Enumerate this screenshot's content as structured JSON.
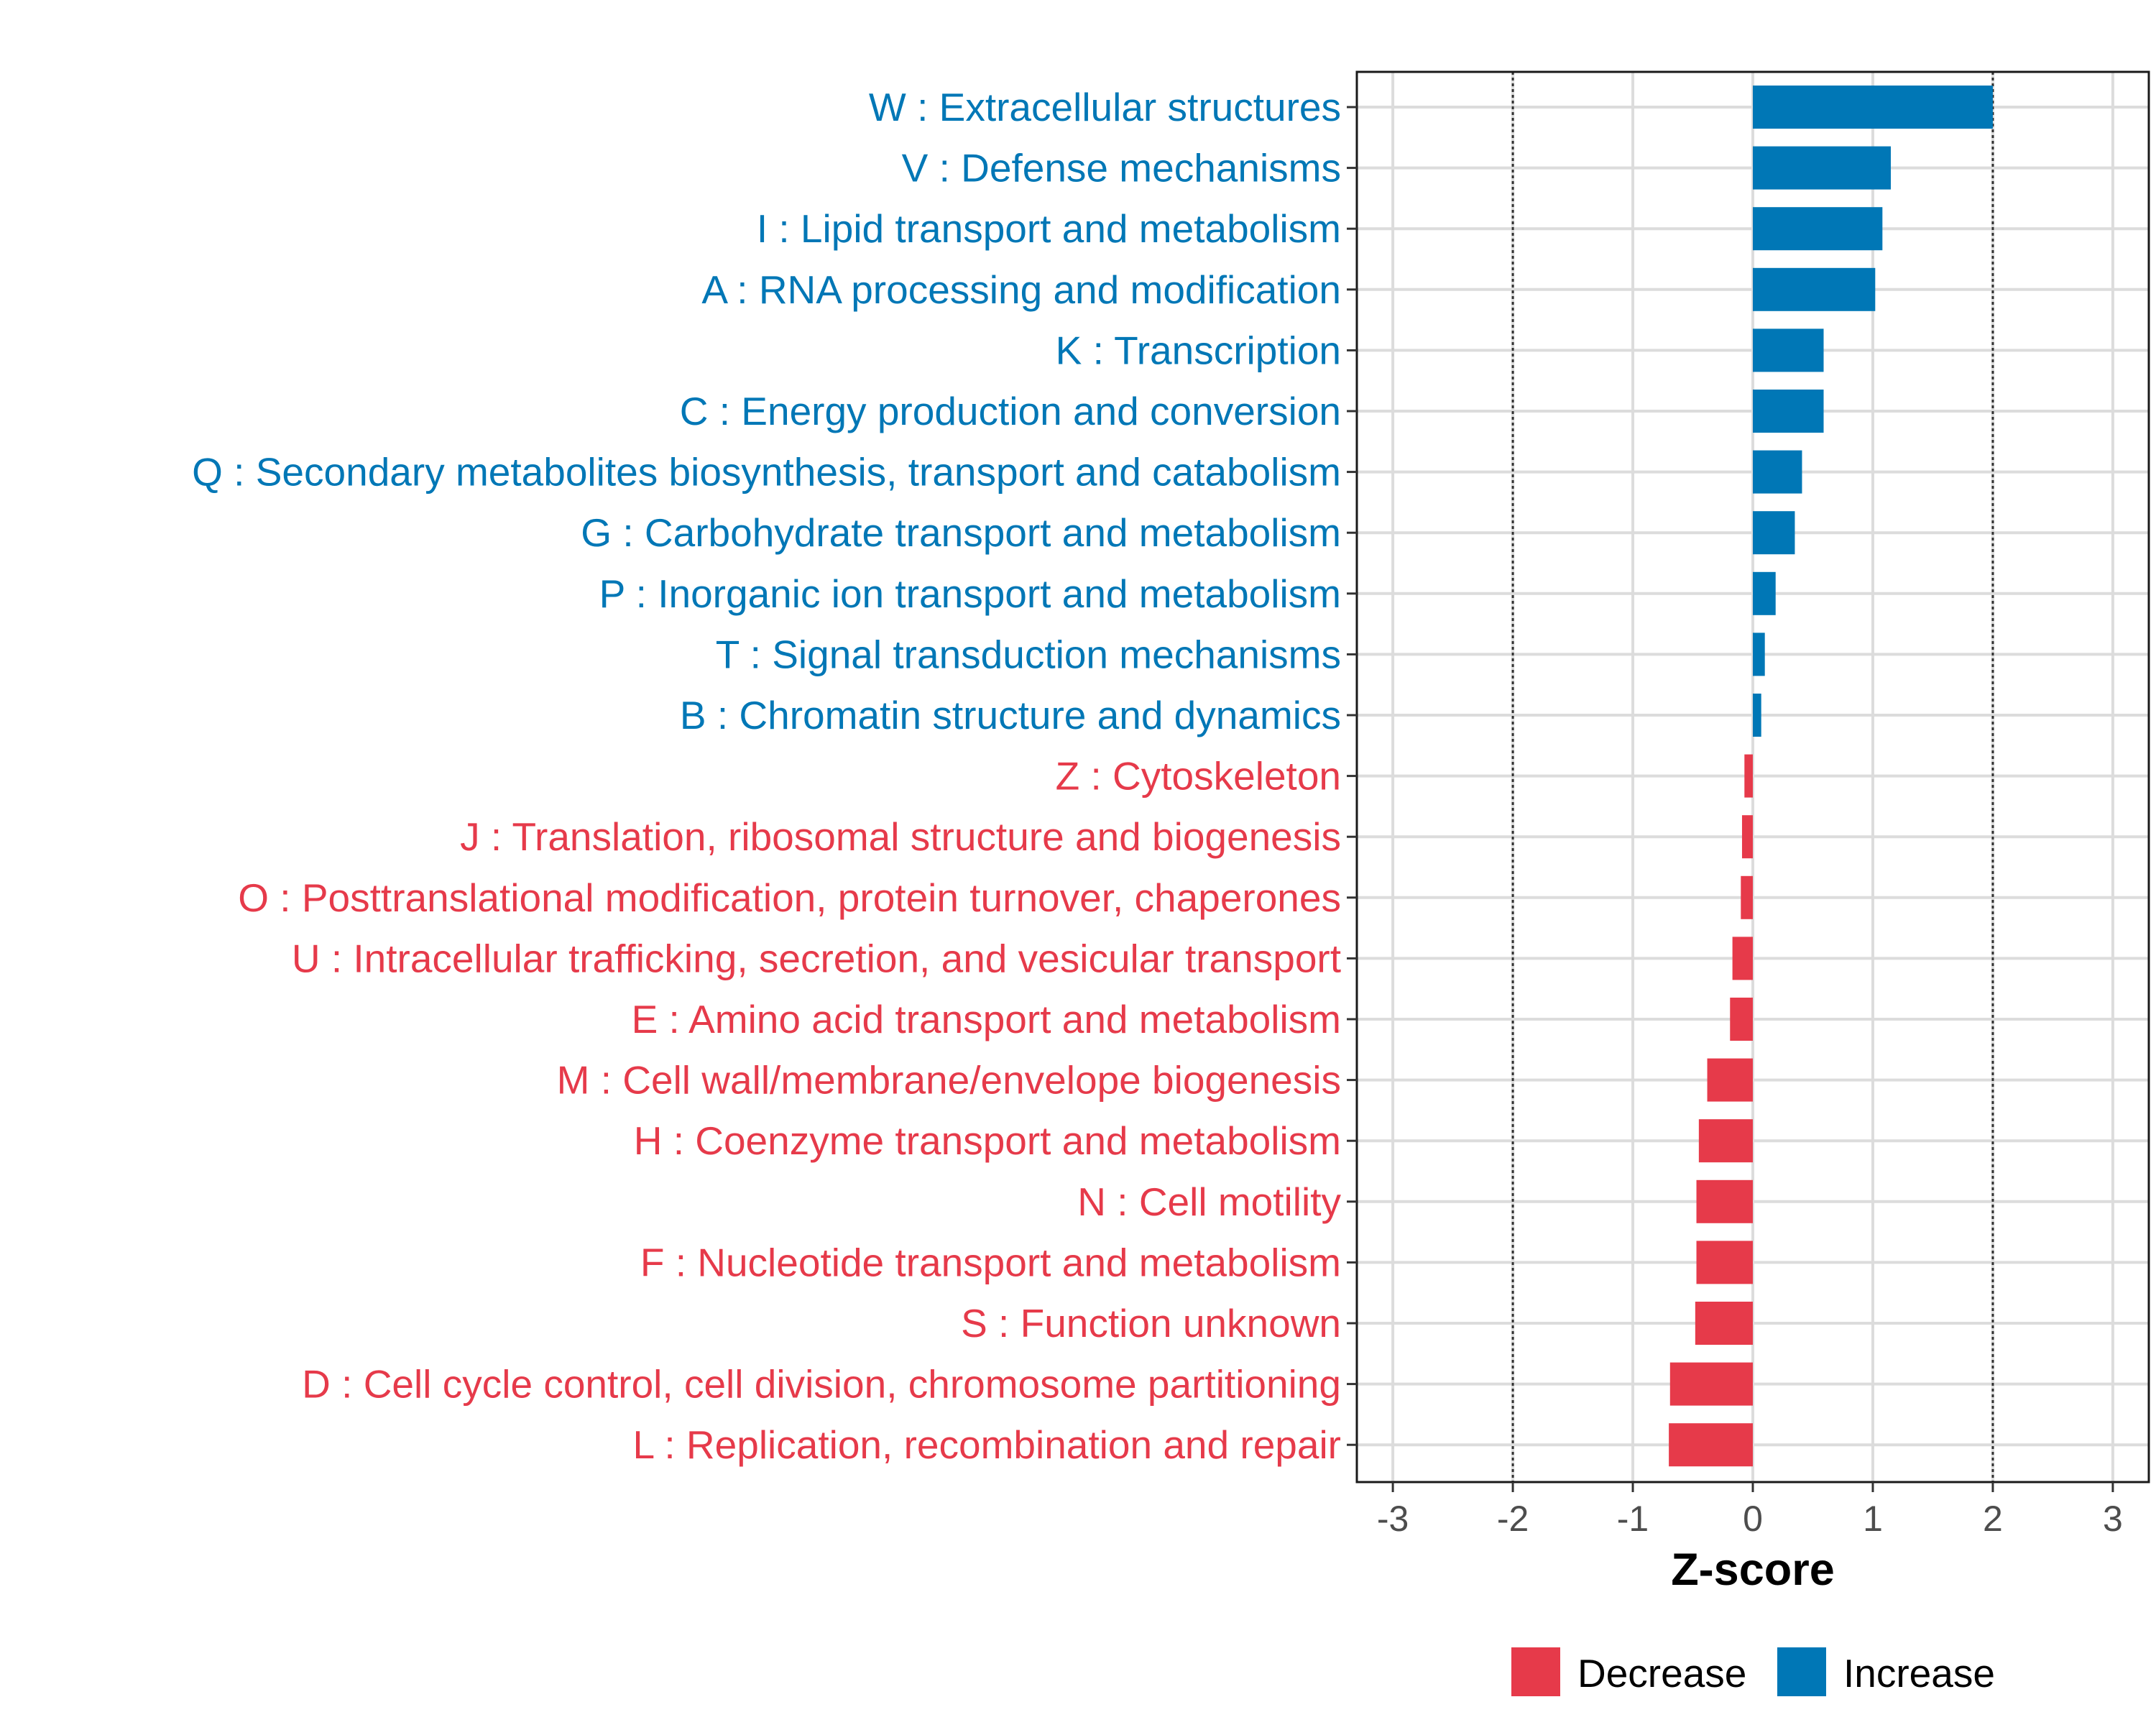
{
  "chart_data": {
    "type": "bar",
    "orientation": "horizontal",
    "title": "",
    "xlabel": "Z-score",
    "ylabel": "",
    "xlim": [
      -3.3,
      3.3
    ],
    "xticks": [
      -3,
      -2,
      -1,
      0,
      1,
      2,
      3
    ],
    "reference_lines": [
      -2,
      2
    ],
    "grid": true,
    "legend_position": "bottom",
    "colors": {
      "Decrease": "#E63A4A",
      "Increase": "#0077B6"
    },
    "legend": [
      {
        "name": "Decrease",
        "color": "#E63A4A"
      },
      {
        "name": "Increase",
        "color": "#0077B6"
      }
    ],
    "categories": [
      "W : Extracellular structures",
      "V : Defense mechanisms",
      "I : Lipid transport and metabolism",
      "A : RNA processing and modification",
      "K : Transcription",
      "C : Energy production and conversion",
      "Q : Secondary metabolites biosynthesis, transport and catabolism",
      "G : Carbohydrate transport and metabolism",
      "P : Inorganic ion transport and metabolism",
      "T : Signal transduction mechanisms",
      "B : Chromatin structure and dynamics",
      "Z : Cytoskeleton",
      "J : Translation, ribosomal structure and biogenesis",
      "O : Posttranslational modification, protein turnover, chaperones",
      "U : Intracellular trafficking, secretion, and vesicular transport",
      "E : Amino acid transport and metabolism",
      "M : Cell wall/membrane/envelope biogenesis",
      "H : Coenzyme transport and metabolism",
      "N : Cell motility",
      "F : Nucleotide transport and metabolism",
      "S : Function unknown",
      "D : Cell cycle control, cell division, chromosome partitioning",
      "L : Replication, recombination and repair"
    ],
    "values": [
      2.0,
      1.15,
      1.08,
      1.02,
      0.59,
      0.59,
      0.41,
      0.35,
      0.19,
      0.1,
      0.07,
      -0.07,
      -0.09,
      -0.1,
      -0.17,
      -0.19,
      -0.38,
      -0.45,
      -0.47,
      -0.47,
      -0.48,
      -0.69,
      -0.7
    ],
    "direction": [
      "Increase",
      "Increase",
      "Increase",
      "Increase",
      "Increase",
      "Increase",
      "Increase",
      "Increase",
      "Increase",
      "Increase",
      "Increase",
      "Decrease",
      "Decrease",
      "Decrease",
      "Decrease",
      "Decrease",
      "Decrease",
      "Decrease",
      "Decrease",
      "Decrease",
      "Decrease",
      "Decrease",
      "Decrease"
    ]
  }
}
